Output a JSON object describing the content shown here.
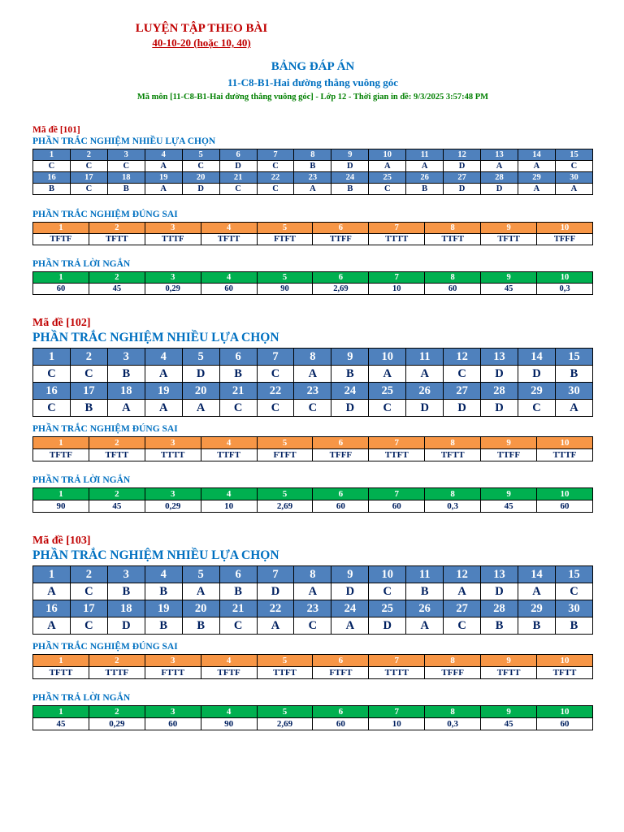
{
  "header": {
    "practice_title": "LUYỆN TẬP THEO BÀI",
    "practice_subtitle": "40-10-20 (hoặc 10, 40)",
    "answer_table_title": "BẢNG ĐÁP ÁN",
    "lesson_title": "11-C8-B1-Hai đường thẳng vuông góc",
    "meta_line": "Mã môn [11-C8-B1-Hai đường thẳng vuông góc] - Lớp 12 - Thời gian in đề: 9/3/2025 3:57:48 PM"
  },
  "labels": {
    "mc_section": "PHẦN TRẮC NGHIỆM NHIỀU LỰA CHỌN",
    "tf_section": "PHẦN TRẮC NGHIỆM ĐÚNG SAI",
    "short_section": "PHẦN TRẢ LỜI NGẮN"
  },
  "colors": {
    "header_blue": "#4f81bd",
    "header_orange": "#f79646",
    "header_green": "#00b050",
    "answer_text_blue": "#002060",
    "title_red": "#c00000",
    "title_blue": "#0070c0",
    "meta_green": "#008000"
  },
  "exams": [
    {
      "code_label": "Mã đề [101]",
      "mc_numbers_1": [
        "1",
        "2",
        "3",
        "4",
        "5",
        "6",
        "7",
        "8",
        "9",
        "10",
        "11",
        "12",
        "13",
        "14",
        "15"
      ],
      "mc_answers_1": [
        "C",
        "C",
        "C",
        "A",
        "C",
        "D",
        "C",
        "B",
        "D",
        "A",
        "A",
        "D",
        "A",
        "A",
        "C"
      ],
      "mc_numbers_2": [
        "16",
        "17",
        "18",
        "19",
        "20",
        "21",
        "22",
        "23",
        "24",
        "25",
        "26",
        "27",
        "28",
        "29",
        "30"
      ],
      "mc_answers_2": [
        "B",
        "C",
        "B",
        "A",
        "D",
        "C",
        "C",
        "A",
        "B",
        "C",
        "B",
        "D",
        "D",
        "A",
        "A"
      ],
      "tf_numbers": [
        "1",
        "2",
        "3",
        "4",
        "5",
        "6",
        "7",
        "8",
        "9",
        "10"
      ],
      "tf_answers": [
        "TFTF",
        "TFTT",
        "TTTF",
        "TFTT",
        "FTFT",
        "TTFF",
        "TTTT",
        "TTFT",
        "TFTT",
        "TFFF"
      ],
      "short_numbers": [
        "1",
        "2",
        "3",
        "4",
        "5",
        "6",
        "7",
        "8",
        "9",
        "10"
      ],
      "short_answers": [
        "60",
        "45",
        "0,29",
        "60",
        "90",
        "2,69",
        "10",
        "60",
        "45",
        "0,3"
      ]
    },
    {
      "code_label": "Mã đề [102]",
      "mc_numbers_1": [
        "1",
        "2",
        "3",
        "4",
        "5",
        "6",
        "7",
        "8",
        "9",
        "10",
        "11",
        "12",
        "13",
        "14",
        "15"
      ],
      "mc_answers_1": [
        "C",
        "C",
        "B",
        "A",
        "D",
        "B",
        "C",
        "A",
        "B",
        "A",
        "A",
        "C",
        "D",
        "D",
        "B"
      ],
      "mc_numbers_2": [
        "16",
        "17",
        "18",
        "19",
        "20",
        "21",
        "22",
        "23",
        "24",
        "25",
        "26",
        "27",
        "28",
        "29",
        "30"
      ],
      "mc_answers_2": [
        "C",
        "B",
        "A",
        "A",
        "A",
        "C",
        "C",
        "C",
        "D",
        "C",
        "D",
        "D",
        "D",
        "C",
        "A"
      ],
      "tf_numbers": [
        "1",
        "2",
        "3",
        "4",
        "5",
        "6",
        "7",
        "8",
        "9",
        "10"
      ],
      "tf_answers": [
        "TFTF",
        "TFTT",
        "TTTT",
        "TTFT",
        "FTFT",
        "TFFF",
        "TTFT",
        "TFTT",
        "TTFF",
        "TTTF"
      ],
      "short_numbers": [
        "1",
        "2",
        "3",
        "4",
        "5",
        "6",
        "7",
        "8",
        "9",
        "10"
      ],
      "short_answers": [
        "90",
        "45",
        "0,29",
        "10",
        "2,69",
        "60",
        "60",
        "0,3",
        "45",
        "60"
      ]
    },
    {
      "code_label": "Mã đề [103]",
      "mc_numbers_1": [
        "1",
        "2",
        "3",
        "4",
        "5",
        "6",
        "7",
        "8",
        "9",
        "10",
        "11",
        "12",
        "13",
        "14",
        "15"
      ],
      "mc_answers_1": [
        "A",
        "C",
        "B",
        "B",
        "A",
        "B",
        "D",
        "A",
        "D",
        "C",
        "B",
        "A",
        "D",
        "A",
        "C"
      ],
      "mc_numbers_2": [
        "16",
        "17",
        "18",
        "19",
        "20",
        "21",
        "22",
        "23",
        "24",
        "25",
        "26",
        "27",
        "28",
        "29",
        "30"
      ],
      "mc_answers_2": [
        "A",
        "C",
        "D",
        "B",
        "B",
        "C",
        "A",
        "C",
        "A",
        "D",
        "A",
        "C",
        "B",
        "B",
        "B"
      ],
      "tf_numbers": [
        "1",
        "2",
        "3",
        "4",
        "5",
        "6",
        "7",
        "8",
        "9",
        "10"
      ],
      "tf_answers": [
        "TFTT",
        "TTTF",
        "FTTT",
        "TFTF",
        "TTFT",
        "FTFT",
        "TTTT",
        "TFFF",
        "TFTT",
        "TFTT"
      ],
      "short_numbers": [
        "1",
        "2",
        "3",
        "4",
        "5",
        "6",
        "7",
        "8",
        "9",
        "10"
      ],
      "short_answers": [
        "45",
        "0,29",
        "60",
        "90",
        "2,69",
        "60",
        "10",
        "0,3",
        "45",
        "60"
      ]
    }
  ]
}
